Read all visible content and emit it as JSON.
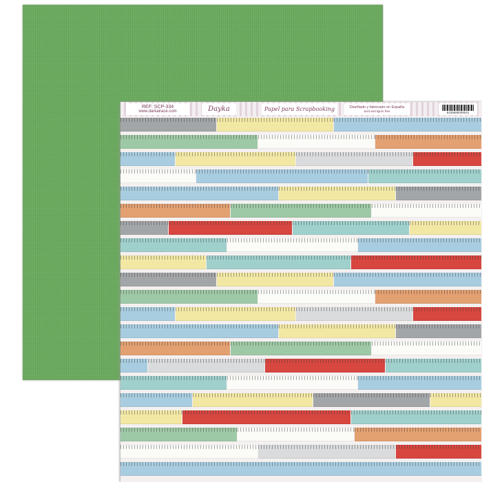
{
  "header": {
    "ref": "REF: SCP-334",
    "website": "www.darkairace.com",
    "brand_logo": "Dayka",
    "title": "Papel para Scrapbooking",
    "made_in": "Diseñado y fabricado en España",
    "acid_free": "acid and lignin free",
    "barcode_number": "8435686009041"
  },
  "palette": [
    "#a8cde0",
    "#f2e8a4",
    "#9ec9a6",
    "#e3a070",
    "#d9dbdc",
    "#d7463f",
    "#a3a6a8",
    "#9fd0cc",
    "#fbfbf8"
  ]
}
